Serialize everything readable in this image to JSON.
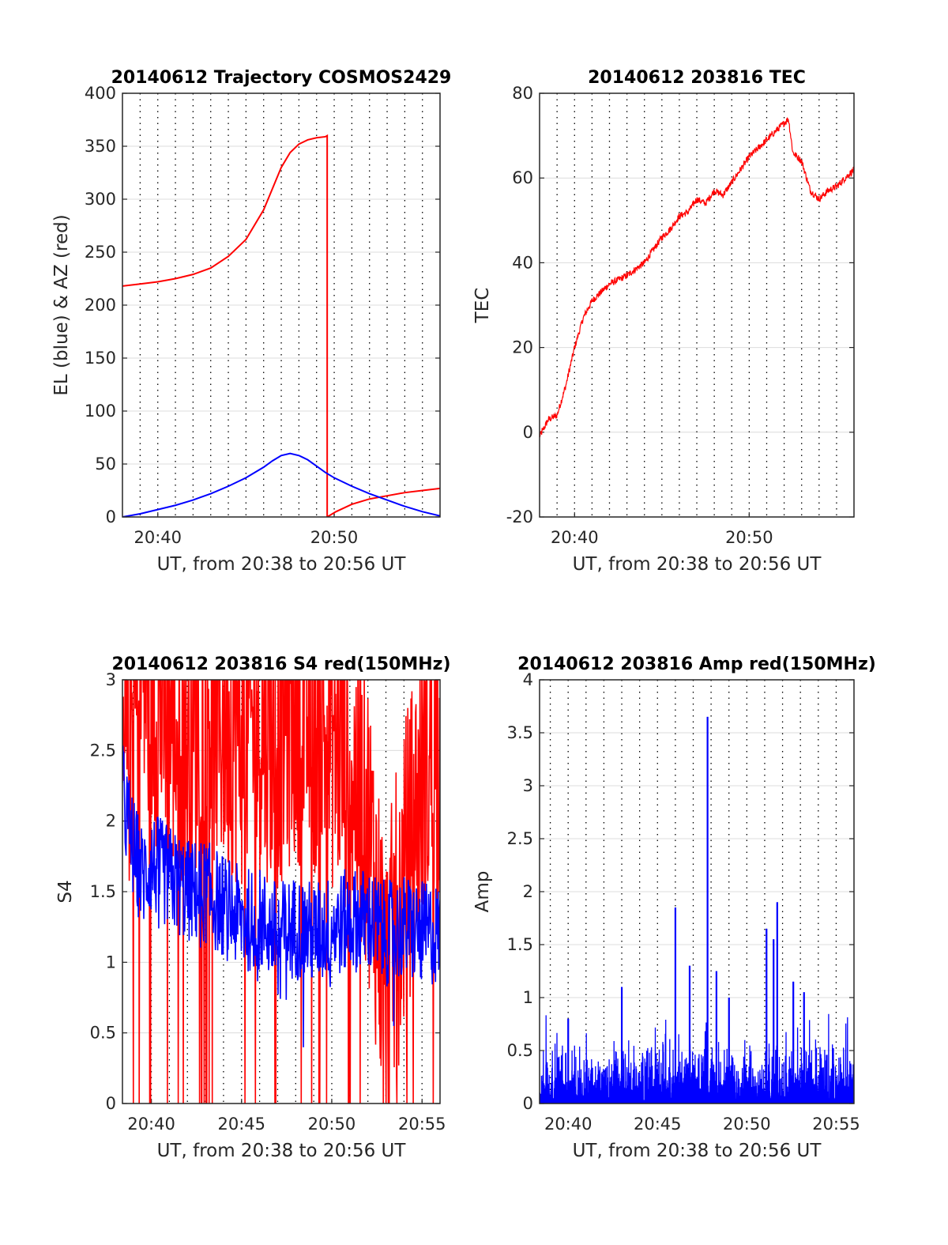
{
  "figure": {
    "colors": {
      "red": "#ff0000",
      "blue": "#0000ff",
      "axis": "#262626",
      "grid": "#000000"
    }
  },
  "chart_data": [
    {
      "id": "trajectory",
      "type": "line",
      "title": "20140612 Trajectory COSMOS2429",
      "xlabel": "UT, from 20:38 to 20:56 UT",
      "ylabel": "EL (blue) & AZ (red)",
      "xlim": [
        20.6333,
        20.9333
      ],
      "ylim": [
        0,
        400
      ],
      "yticks": [
        0,
        50,
        100,
        150,
        200,
        250,
        300,
        350,
        400
      ],
      "xtick_labels": [
        {
          "x": 20.6667,
          "label": "20:40"
        },
        {
          "x": 20.8333,
          "label": "20:50"
        }
      ],
      "grid": "dotted vertical (per minute) and solid horizontal",
      "series": [
        {
          "color": "#ff0000",
          "x": [
            20.6333,
            20.65,
            20.6667,
            20.6833,
            20.7,
            20.7167,
            20.7333,
            20.75,
            20.7667,
            20.775,
            20.7833,
            20.7917,
            20.8,
            20.8083,
            20.8167,
            20.825,
            20.8267,
            20.8267,
            20.835,
            20.85,
            20.8667,
            20.8833,
            20.9,
            20.9167,
            20.9333
          ],
          "values": [
            218,
            220,
            222,
            225,
            229,
            235,
            246,
            262,
            290,
            310,
            330,
            344,
            352,
            356,
            358,
            359,
            360,
            0,
            5,
            12,
            17,
            20,
            23,
            25,
            27
          ]
        },
        {
          "color": "#0000ff",
          "x": [
            20.6333,
            20.65,
            20.6667,
            20.6833,
            20.7,
            20.7167,
            20.7333,
            20.75,
            20.7667,
            20.775,
            20.7833,
            20.7917,
            20.8,
            20.8083,
            20.8167,
            20.825,
            20.8333,
            20.85,
            20.8667,
            20.8833,
            20.9,
            20.9167,
            20.9333
          ],
          "values": [
            0,
            3,
            7,
            11,
            16,
            22,
            29,
            37,
            47,
            53,
            58,
            60,
            58,
            54,
            48,
            42,
            37,
            29,
            22,
            16,
            10,
            5,
            1
          ]
        }
      ]
    },
    {
      "id": "tec",
      "type": "line",
      "title": "20140612 203816 TEC",
      "xlabel": "UT, from 20:38 to 20:56 UT",
      "ylabel": "TEC",
      "xlim": [
        20.6333,
        20.9333
      ],
      "ylim": [
        -20,
        80
      ],
      "yticks": [
        -20,
        0,
        20,
        40,
        60,
        80
      ],
      "xtick_labels": [
        {
          "x": 20.6667,
          "label": "20:40"
        },
        {
          "x": 20.8333,
          "label": "20:50"
        }
      ],
      "grid": "dotted vertical (per minute) and solid horizontal",
      "series": [
        {
          "color": "#ff0000",
          "x": [
            20.6333,
            20.6417,
            20.65,
            20.6583,
            20.6667,
            20.675,
            20.6833,
            20.7,
            20.7167,
            20.7333,
            20.75,
            20.7583,
            20.7667,
            20.775,
            20.7833,
            20.7917,
            20.8,
            20.8083,
            20.8167,
            20.825,
            20.8333,
            20.8417,
            20.85,
            20.8583,
            20.8667,
            20.8708,
            20.875,
            20.8833,
            20.8917,
            20.9,
            20.9083,
            20.9167,
            20.9333
          ],
          "values": [
            -1,
            3,
            4,
            11,
            20,
            27,
            31,
            35,
            37,
            40,
            46,
            48,
            51,
            52,
            55,
            54,
            57,
            56,
            59,
            62,
            65,
            67,
            69,
            71,
            73,
            74,
            66,
            64,
            57,
            55,
            57,
            58,
            62
          ]
        }
      ]
    },
    {
      "id": "s4",
      "type": "line",
      "title": "20140612 203816 S4 red(150MHz)",
      "xlabel": "UT, from 20:38 to 20:56 UT",
      "ylabel": "S4",
      "xlim": [
        20.64,
        20.9333
      ],
      "ylim": [
        0,
        3
      ],
      "yticks": [
        0,
        0.5,
        1,
        1.5,
        2,
        2.5,
        3
      ],
      "xtick_labels": [
        {
          "x": 20.6667,
          "label": "20:40"
        },
        {
          "x": 20.75,
          "label": "20:45"
        },
        {
          "x": 20.8333,
          "label": "20:50"
        },
        {
          "x": 20.9167,
          "label": "20:55"
        }
      ],
      "grid": "dotted vertical and solid horizontal",
      "series": [
        {
          "color": "#ff0000",
          "x": [
            20.64,
            20.65,
            20.6583,
            20.6667,
            20.6833,
            20.7,
            20.7167,
            20.7333,
            20.75,
            20.7667,
            20.7833,
            20.8,
            20.8167,
            20.8333,
            20.85,
            20.8667,
            20.8833,
            20.9,
            20.9167,
            20.9333
          ],
          "values": [
            2.2,
            2.8,
            3.0,
            2.9,
            2.7,
            2.6,
            2.8,
            2.7,
            2.6,
            2.7,
            2.6,
            2.8,
            2.7,
            2.6,
            2.4,
            2.0,
            0.8,
            1.6,
            2.3,
            2.5
          ]
        },
        {
          "color": "#0000ff",
          "x": [
            20.64,
            20.65,
            20.6583,
            20.6667,
            20.6833,
            20.7,
            20.7167,
            20.7333,
            20.75,
            20.7667,
            20.7833,
            20.8,
            20.8167,
            20.8333,
            20.85,
            20.8667,
            20.8833,
            20.9,
            20.9167,
            20.9333
          ],
          "values": [
            2.2,
            1.8,
            1.6,
            1.7,
            1.6,
            1.5,
            1.5,
            1.4,
            1.3,
            1.3,
            1.2,
            1.25,
            1.2,
            1.25,
            1.3,
            1.3,
            1.2,
            1.25,
            1.2,
            1.2
          ]
        }
      ]
    },
    {
      "id": "amp",
      "type": "line",
      "title": "20140612 203816 Amp red(150MHz)",
      "xlabel": "UT, from 20:38 to 20:56 UT",
      "ylabel": "Amp",
      "xlim": [
        20.64,
        20.9333
      ],
      "ylim": [
        0,
        4
      ],
      "yticks": [
        0,
        0.5,
        1,
        1.5,
        2,
        2.5,
        3,
        3.5,
        4
      ],
      "xtick_labels": [
        {
          "x": 20.6667,
          "label": "20:40"
        },
        {
          "x": 20.75,
          "label": "20:45"
        },
        {
          "x": 20.8333,
          "label": "20:50"
        },
        {
          "x": 20.9167,
          "label": "20:55"
        }
      ],
      "grid": "dotted vertical and solid horizontal",
      "series": [
        {
          "color": "#0000ff",
          "x": [
            20.6667,
            20.7167,
            20.7667,
            20.78,
            20.7967,
            20.805,
            20.8167,
            20.8517,
            20.8583,
            20.8617,
            20.8767,
            20.8867
          ],
          "values": [
            0.8,
            1.1,
            1.85,
            1.3,
            3.65,
            1.25,
            1.0,
            1.65,
            1.55,
            1.9,
            1.15,
            1.05
          ]
        }
      ]
    }
  ]
}
